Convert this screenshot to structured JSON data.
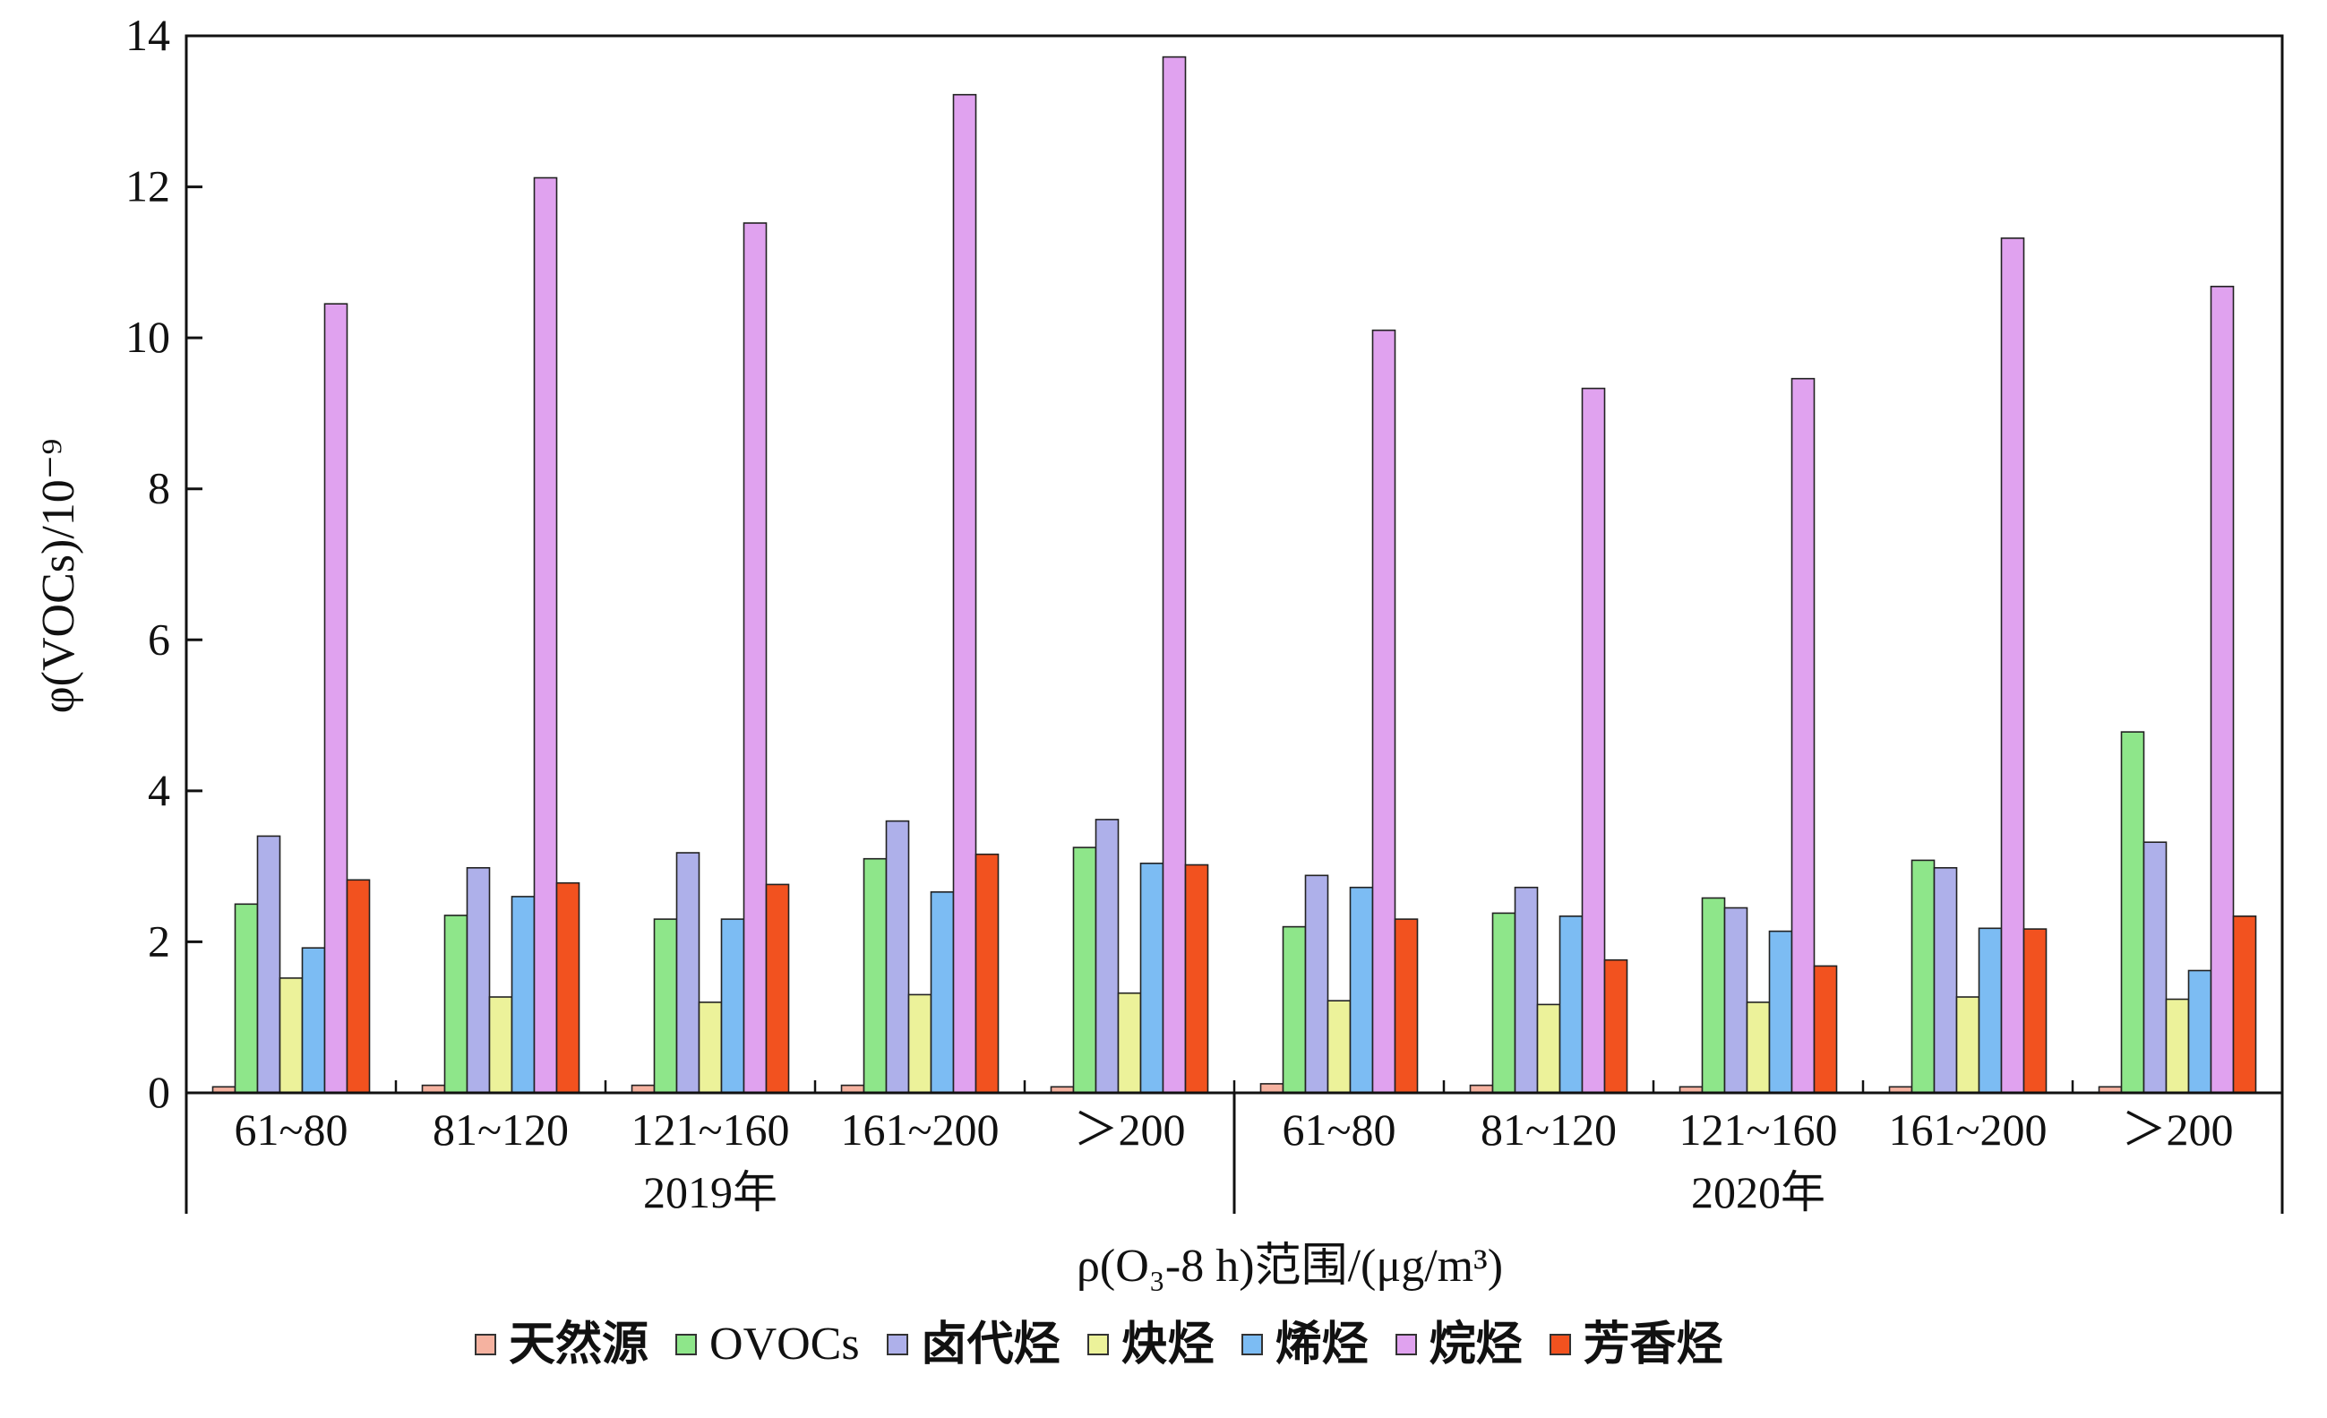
{
  "chart_data": {
    "type": "bar",
    "ylabel": "φ(VOCs)/10⁻⁹",
    "xlabel": "ρ(O₃-8 h)范围/(μg/m³)",
    "ylim": [
      0,
      14
    ],
    "yticks": [
      0,
      2,
      4,
      6,
      8,
      10,
      12,
      14
    ],
    "groups": [
      {
        "name": "2019年",
        "categories": [
          "61~80",
          "81~120",
          "121~160",
          "161~200",
          "＞200"
        ]
      },
      {
        "name": "2020年",
        "categories": [
          "61~80",
          "81~120",
          "121~160",
          "161~200",
          "＞200"
        ]
      }
    ],
    "series": [
      {
        "name": "天然源",
        "color": "#f5b2a0",
        "values": [
          0.08,
          0.1,
          0.1,
          0.1,
          0.08,
          0.12,
          0.1,
          0.08,
          0.08,
          0.08
        ]
      },
      {
        "name": "OVOCs",
        "color": "#8ee68a",
        "values": [
          2.5,
          2.35,
          2.3,
          3.1,
          3.25,
          2.2,
          2.38,
          2.58,
          3.08,
          4.78
        ]
      },
      {
        "name": "卤代烃",
        "color": "#aeb0ea",
        "values": [
          3.4,
          2.98,
          3.18,
          3.6,
          3.62,
          2.88,
          2.72,
          2.45,
          2.98,
          3.32
        ]
      },
      {
        "name": "炔烃",
        "color": "#ecf29a",
        "values": [
          1.52,
          1.27,
          1.2,
          1.3,
          1.32,
          1.22,
          1.17,
          1.2,
          1.27,
          1.24
        ]
      },
      {
        "name": "烯烃",
        "color": "#7cbcf3",
        "values": [
          1.92,
          2.6,
          2.3,
          2.66,
          3.04,
          2.72,
          2.34,
          2.14,
          2.18,
          1.62
        ]
      },
      {
        "name": "烷烃",
        "color": "#e0a2ef",
        "values": [
          10.45,
          12.12,
          11.52,
          13.22,
          13.72,
          10.1,
          9.33,
          9.46,
          11.32,
          10.68
        ]
      },
      {
        "name": "芳香烃",
        "color": "#f2521f",
        "values": [
          2.82,
          2.78,
          2.76,
          3.16,
          3.02,
          2.3,
          1.76,
          1.68,
          2.17,
          2.34
        ]
      }
    ]
  }
}
